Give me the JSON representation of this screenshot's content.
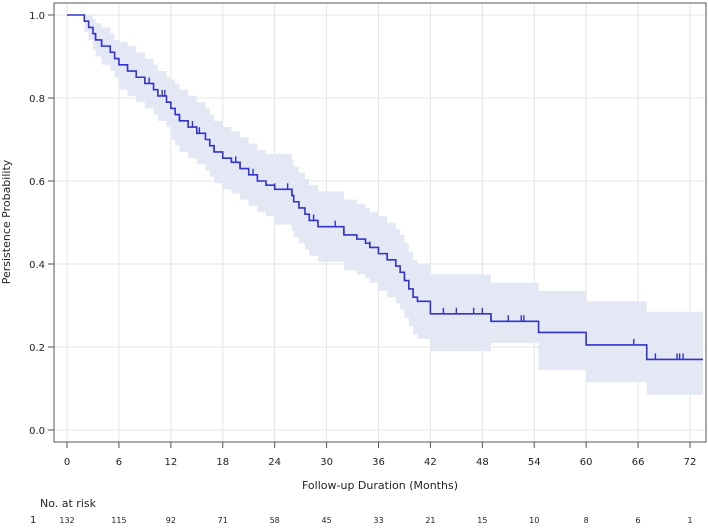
{
  "chart_data": {
    "type": "line",
    "subtype": "kaplan-meier",
    "xlabel": "Follow-up Duration (Months)",
    "ylabel": "Persistence Probability",
    "xlim": [
      -1.5,
      73.5
    ],
    "ylim": [
      -0.03,
      1.03
    ],
    "xticks": [
      0,
      6,
      12,
      18,
      24,
      30,
      36,
      42,
      48,
      54,
      60,
      66,
      72
    ],
    "yticks": [
      0.0,
      0.2,
      0.4,
      0.6,
      0.8,
      1.0
    ],
    "ytick_labels": [
      "0.0",
      "0.2",
      "0.4",
      "0.6",
      "0.8",
      "1.0"
    ],
    "grid": true,
    "colors": {
      "line": "#3333cc",
      "band": "#e3e8f4",
      "grid": "#e4e4e4"
    },
    "steps": [
      [
        0,
        1.0,
        1.0,
        1.0
      ],
      [
        2,
        0.985,
        0.96,
        1.0
      ],
      [
        2.5,
        0.97,
        0.94,
        1.0
      ],
      [
        3,
        0.955,
        0.915,
        0.99
      ],
      [
        3.3,
        0.94,
        0.9,
        0.98
      ],
      [
        4,
        0.925,
        0.88,
        0.97
      ],
      [
        5,
        0.91,
        0.865,
        0.955
      ],
      [
        5.5,
        0.895,
        0.85,
        0.94
      ],
      [
        6,
        0.88,
        0.82,
        0.935
      ],
      [
        7,
        0.865,
        0.805,
        0.925
      ],
      [
        8,
        0.85,
        0.79,
        0.91
      ],
      [
        9,
        0.835,
        0.775,
        0.895
      ],
      [
        10,
        0.82,
        0.76,
        0.88
      ],
      [
        10.5,
        0.805,
        0.745,
        0.865
      ],
      [
        11.5,
        0.79,
        0.73,
        0.85
      ],
      [
        12,
        0.775,
        0.7,
        0.845
      ],
      [
        12.5,
        0.76,
        0.685,
        0.835
      ],
      [
        13,
        0.745,
        0.67,
        0.82
      ],
      [
        14,
        0.73,
        0.655,
        0.805
      ],
      [
        15,
        0.715,
        0.64,
        0.79
      ],
      [
        16,
        0.7,
        0.625,
        0.775
      ],
      [
        16.5,
        0.685,
        0.61,
        0.76
      ],
      [
        17,
        0.67,
        0.595,
        0.745
      ],
      [
        18,
        0.655,
        0.58,
        0.73
      ],
      [
        19,
        0.645,
        0.57,
        0.72
      ],
      [
        20,
        0.63,
        0.555,
        0.705
      ],
      [
        21,
        0.615,
        0.54,
        0.69
      ],
      [
        22,
        0.6,
        0.525,
        0.675
      ],
      [
        23,
        0.59,
        0.515,
        0.665
      ],
      [
        24,
        0.58,
        0.495,
        0.665
      ],
      [
        26,
        0.565,
        0.48,
        0.65
      ],
      [
        26.2,
        0.55,
        0.465,
        0.635
      ],
      [
        26.8,
        0.535,
        0.45,
        0.62
      ],
      [
        27.5,
        0.52,
        0.435,
        0.605
      ],
      [
        28,
        0.505,
        0.42,
        0.59
      ],
      [
        29,
        0.49,
        0.405,
        0.575
      ],
      [
        32,
        0.47,
        0.385,
        0.555
      ],
      [
        33.5,
        0.46,
        0.375,
        0.545
      ],
      [
        34.5,
        0.45,
        0.365,
        0.535
      ],
      [
        35,
        0.44,
        0.355,
        0.525
      ],
      [
        36,
        0.425,
        0.335,
        0.515
      ],
      [
        37,
        0.41,
        0.32,
        0.5
      ],
      [
        38,
        0.395,
        0.305,
        0.485
      ],
      [
        38.5,
        0.38,
        0.29,
        0.47
      ],
      [
        39,
        0.36,
        0.27,
        0.45
      ],
      [
        39.5,
        0.34,
        0.25,
        0.43
      ],
      [
        40,
        0.32,
        0.23,
        0.41
      ],
      [
        40.5,
        0.31,
        0.22,
        0.4
      ],
      [
        42,
        0.28,
        0.19,
        0.375
      ],
      [
        49,
        0.262,
        0.21,
        0.355
      ],
      [
        54.5,
        0.235,
        0.145,
        0.335
      ],
      [
        60,
        0.205,
        0.115,
        0.31
      ],
      [
        67,
        0.17,
        0.085,
        0.285
      ]
    ],
    "x_end": 73.5,
    "censored": [
      3.3,
      4,
      9.5,
      11,
      11.3,
      13,
      14.5,
      15,
      15.3,
      17,
      18,
      19.5,
      20,
      21.5,
      24,
      25.5,
      26,
      28,
      28.5,
      31,
      32,
      35,
      37,
      39,
      39.5,
      43.5,
      45,
      47,
      48,
      49,
      51,
      52.5,
      52.8,
      60,
      65.5,
      68,
      70.5,
      70.8,
      71.2
    ],
    "risk_table": {
      "title": "No. at risk",
      "group_label": "1",
      "times": [
        0,
        6,
        12,
        18,
        24,
        30,
        36,
        42,
        48,
        54,
        60,
        66,
        72
      ],
      "counts": [
        "132",
        "115",
        "92",
        "71",
        "58",
        "45",
        "33",
        "21",
        "15",
        "10",
        "8",
        "6",
        "1"
      ]
    }
  }
}
